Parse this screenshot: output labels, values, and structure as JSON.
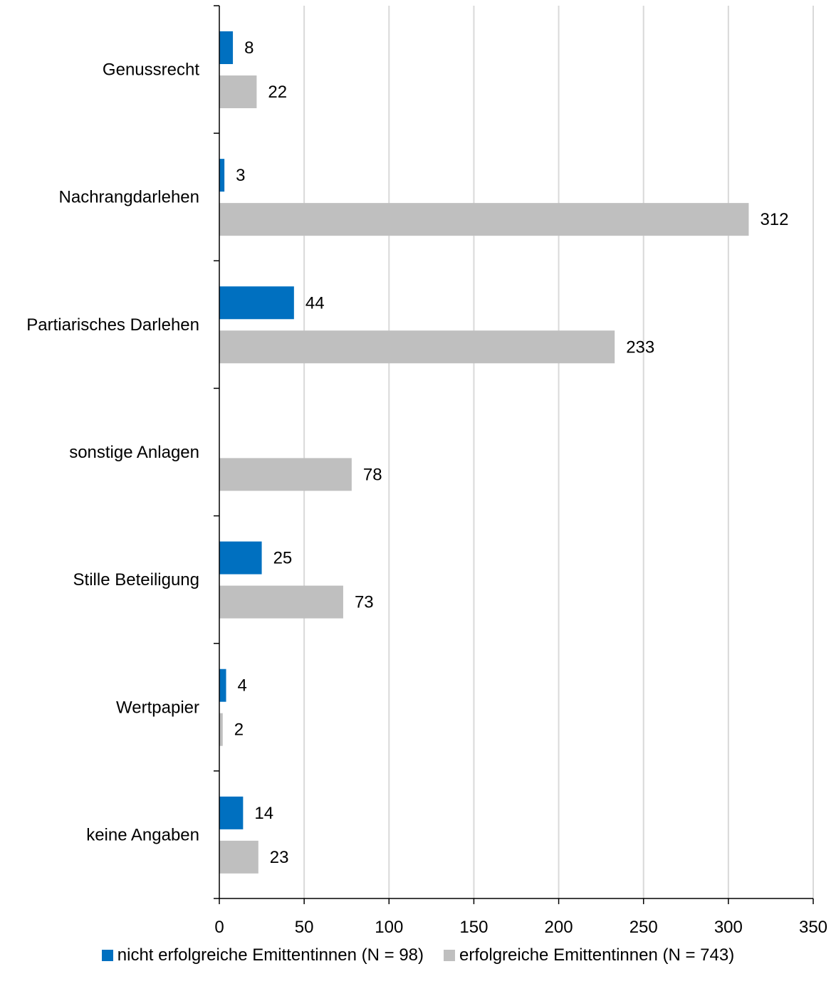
{
  "chart_data": {
    "type": "bar",
    "orientation": "horizontal",
    "categories": [
      "Genussrecht",
      "Nachrangdarlehen",
      "Partiarisches Darlehen",
      "sonstige Anlagen",
      "Stille Beteiligung",
      "Wertpapier",
      "keine Angaben"
    ],
    "series": [
      {
        "name": "nicht erfolgreiche Emittentinnen (N = 98)",
        "color": "#0070C0",
        "values": [
          8,
          3,
          44,
          null,
          25,
          4,
          14
        ]
      },
      {
        "name": "erfolgreiche Emittentinnen (N = 743)",
        "color": "#BFBFBF",
        "values": [
          22,
          312,
          233,
          78,
          73,
          2,
          23
        ]
      }
    ],
    "xlim": [
      0,
      350
    ],
    "xticks": [
      "0",
      "50",
      "100",
      "150",
      "200",
      "250",
      "300",
      "350"
    ],
    "grid": "vertical",
    "legend_position": "bottom"
  }
}
